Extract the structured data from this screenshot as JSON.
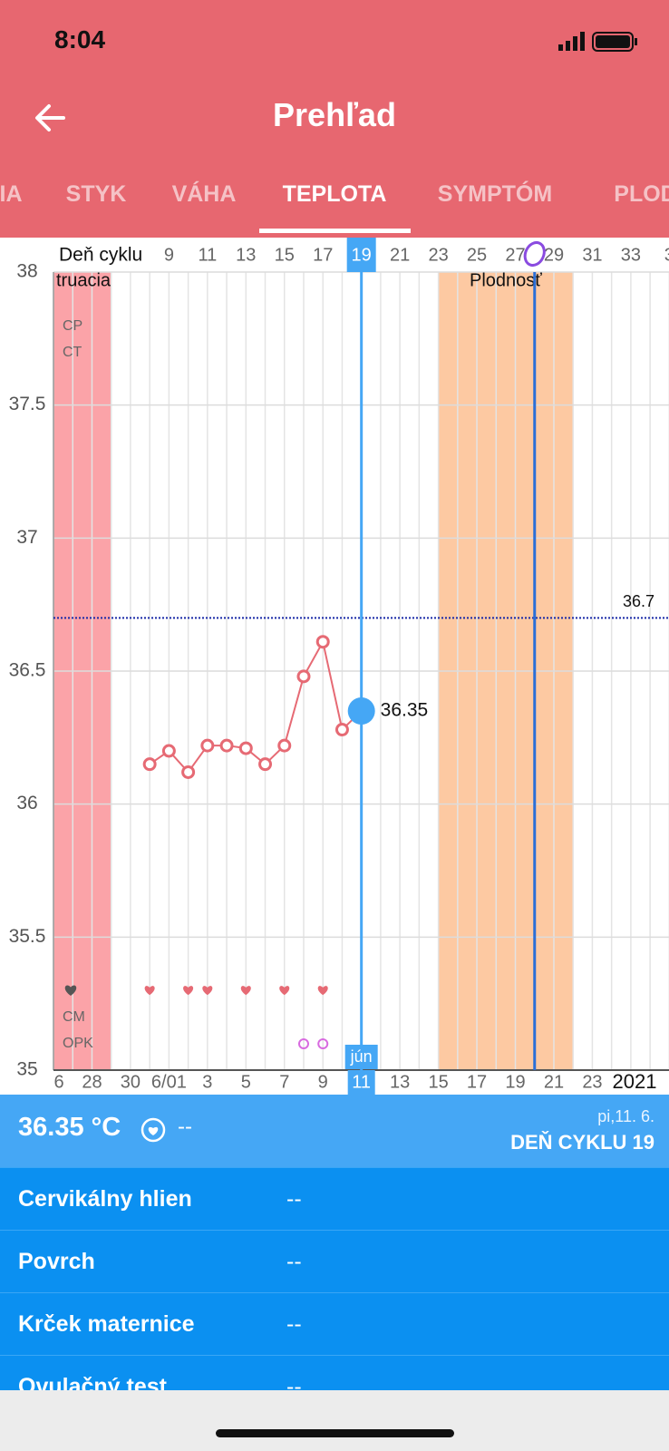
{
  "status_bar": {
    "time": "8:04"
  },
  "header": {
    "title": "Prehľad"
  },
  "tabs": [
    "IA",
    "STYK",
    "VÁHA",
    "TEPLOTA",
    "SYMPTÓM",
    "PLOD"
  ],
  "chart_data": {
    "type": "line",
    "x_axis_title": "Deň cyklu",
    "categories": [
      "6",
      null,
      "28",
      null,
      "30",
      null,
      "6/01",
      null,
      "3",
      null,
      "5",
      null,
      "7",
      null,
      "9",
      null,
      "11",
      null,
      "13",
      null,
      "15",
      null,
      "17",
      null,
      "19",
      null,
      "21",
      null,
      "23",
      null,
      null,
      null,
      null
    ],
    "top_categories": [
      null,
      null,
      null,
      null,
      null,
      null,
      "9",
      null,
      "11",
      null,
      "13",
      null,
      "15",
      null,
      "17",
      null,
      "19",
      null,
      "21",
      null,
      "23",
      null,
      "25",
      null,
      "27",
      null,
      "29",
      null,
      "31",
      null,
      "33",
      null,
      "3"
    ],
    "year_label": "2021",
    "month_label": "jún",
    "values": [
      null,
      null,
      null,
      null,
      null,
      36.15,
      36.2,
      36.12,
      36.22,
      36.22,
      36.21,
      36.15,
      36.22,
      36.48,
      36.61,
      36.28,
      36.35,
      null,
      null,
      null,
      null,
      null,
      null,
      null,
      null,
      null,
      null,
      null,
      null,
      null,
      null,
      null,
      null
    ],
    "color": "#e66a74",
    "selected_index": 16,
    "selected_color": "#45a7f5",
    "coverline": 36.7,
    "ylim": [
      35,
      38
    ],
    "yticks": [
      35,
      35.5,
      36,
      36.5,
      37,
      37.5,
      38
    ],
    "grid": true,
    "phases": [
      {
        "name": "truacia",
        "from": 0,
        "to": 3,
        "color": "#fba3a8"
      },
      {
        "name": "Plodnosť",
        "from": 20,
        "to": 27,
        "color": "#fdc9a2"
      }
    ],
    "ovulation_index": 25,
    "intercourse": [
      5,
      7,
      8,
      10,
      12,
      14
    ],
    "opk_tests": [
      13,
      14
    ],
    "row_labels": [
      "CP",
      "CT",
      "CM",
      "OPK"
    ]
  },
  "detail": {
    "temperature": "36.35 °C",
    "temperature_note": "--",
    "date": "pi,11. 6.",
    "cycle_day": "DEŇ CYKLU 19"
  },
  "rows": [
    {
      "label": "Cervikálny hlien",
      "value": "--"
    },
    {
      "label": "Povrch",
      "value": "--"
    },
    {
      "label": "Krček maternice",
      "value": "--"
    },
    {
      "label": "Ovulačný test",
      "value": "--"
    }
  ]
}
